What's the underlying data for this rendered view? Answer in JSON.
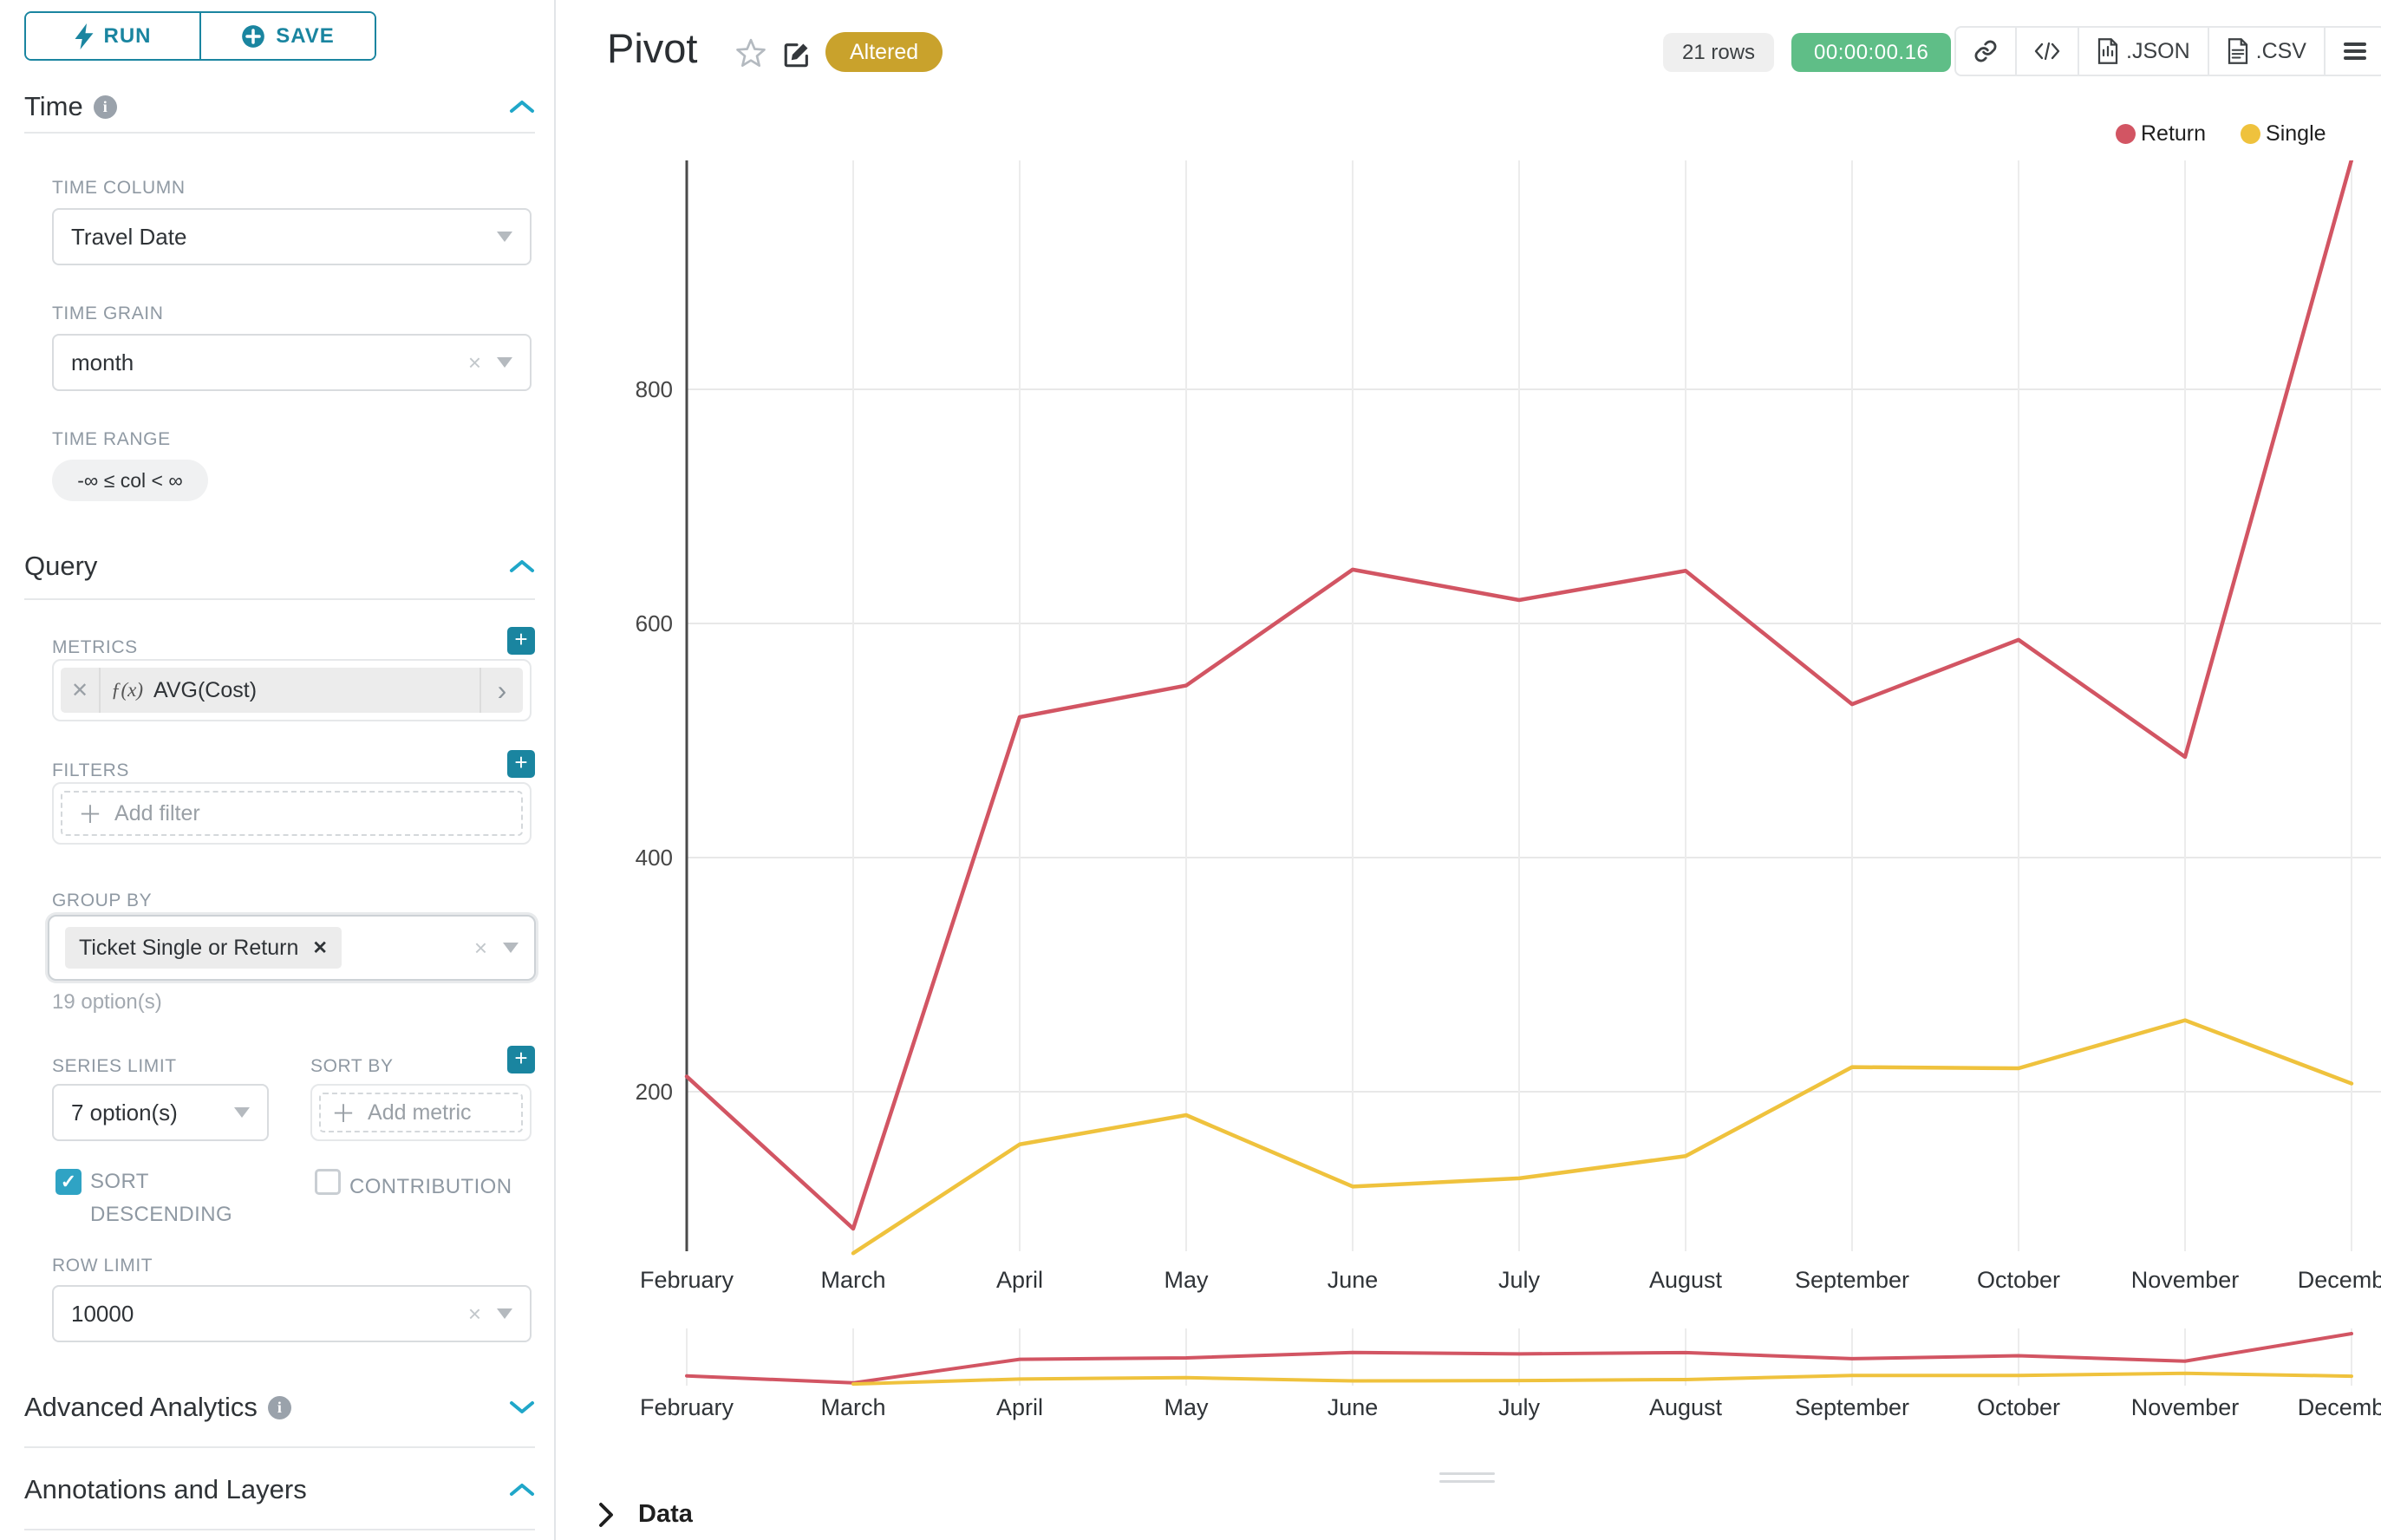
{
  "toolbar": {
    "run_label": "RUN",
    "save_label": "SAVE"
  },
  "sidebar": {
    "time_section": "Time",
    "time_column": {
      "label": "TIME COLUMN",
      "value": "Travel Date"
    },
    "time_grain": {
      "label": "TIME GRAIN",
      "value": "month"
    },
    "time_range": {
      "label": "TIME RANGE",
      "value": "-∞ ≤ col < ∞"
    },
    "query_section": "Query",
    "metrics": {
      "label": "METRICS",
      "fx": "ƒ(x)",
      "value": "AVG(Cost)"
    },
    "filters": {
      "label": "FILTERS",
      "placeholder": "Add filter"
    },
    "group_by": {
      "label": "GROUP BY",
      "tag": "Ticket Single or Return",
      "hint": "19 option(s)"
    },
    "series_limit": {
      "label": "SERIES LIMIT",
      "value": "7 option(s)"
    },
    "sort_by": {
      "label": "SORT BY",
      "placeholder": "Add metric"
    },
    "sort_descending": {
      "label": "SORT DESCENDING",
      "checked": true
    },
    "contribution": {
      "label": "CONTRIBUTION",
      "checked": false
    },
    "row_limit": {
      "label": "ROW LIMIT",
      "value": "10000"
    },
    "advanced_section": "Advanced Analytics",
    "annotations_section": "Annotations and Layers"
  },
  "header": {
    "title": "Pivot",
    "badge": "Altered",
    "row_count": "21 rows",
    "timer": "00:00:00.16",
    "json_label": ".JSON",
    "csv_label": ".CSV"
  },
  "data_panel": {
    "label": "Data"
  },
  "chart_data": {
    "type": "line",
    "categories": [
      "February",
      "March",
      "April",
      "May",
      "June",
      "July",
      "August",
      "September",
      "October",
      "November",
      "December"
    ],
    "series": [
      {
        "name": "Return",
        "color": "#d25563",
        "values": [
          213,
          83,
          520,
          547,
          646,
          620,
          645,
          531,
          586,
          486,
          996
        ]
      },
      {
        "name": "Single",
        "color": "#efc23d",
        "values": [
          null,
          62,
          155,
          180,
          119,
          126,
          145,
          221,
          220,
          261,
          207
        ]
      }
    ],
    "title": "Pivot",
    "xlabel": "",
    "ylabel": "",
    "ylim": [
      0,
      1000
    ],
    "yticks": [
      200,
      400,
      600,
      800
    ],
    "grid": true,
    "legend_position": "top-right",
    "has_minimap": true
  }
}
